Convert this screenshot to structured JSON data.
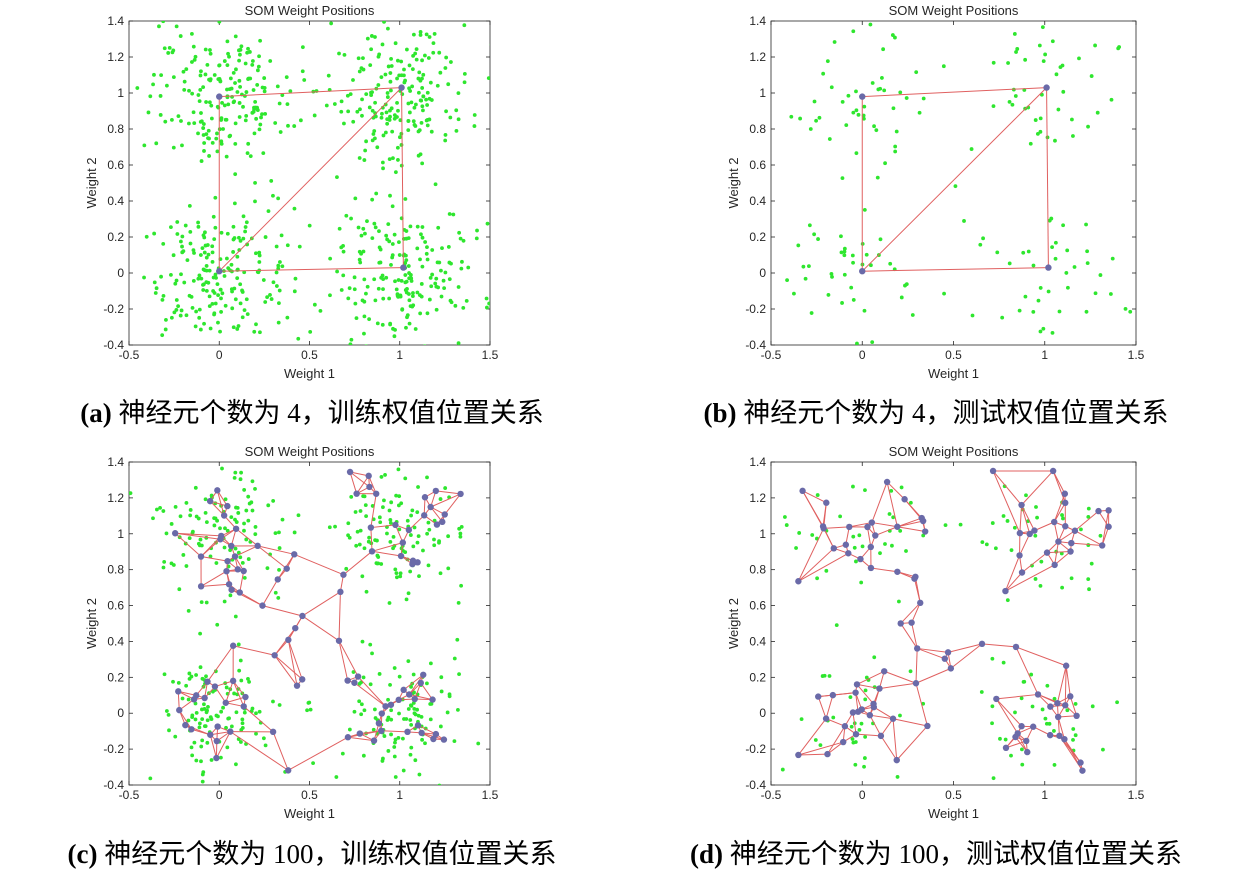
{
  "colors": {
    "points": "#2ee62e",
    "links": "#e06060",
    "neurons": "#6a6aa8",
    "axis": "#262626"
  },
  "chart_data": [
    {
      "id": "a",
      "type": "scatter",
      "title": "SOM Weight Positions",
      "xlabel": "Weight 1",
      "ylabel": "Weight 2",
      "xlim": [
        -0.5,
        1.5
      ],
      "ylim": [
        -0.4,
        1.4
      ],
      "xticks": [
        -0.5,
        0,
        0.5,
        1,
        1.5
      ],
      "yticks": [
        -0.4,
        -0.2,
        0,
        0.2,
        0.4,
        0.6,
        0.8,
        1,
        1.2,
        1.4
      ],
      "clusters": [
        [
          0,
          1
        ],
        [
          1,
          1
        ],
        [
          0,
          0
        ],
        [
          1,
          0
        ]
      ],
      "points_per_cluster": 200,
      "cluster_spread": 0.2,
      "neuron_count": 4,
      "neurons": [
        [
          0,
          0.98
        ],
        [
          1.01,
          1.03
        ],
        [
          0.0,
          0.01
        ],
        [
          1.02,
          0.03
        ]
      ],
      "links": [
        [
          0,
          1
        ],
        [
          0,
          2
        ],
        [
          1,
          3
        ],
        [
          2,
          3
        ],
        [
          1,
          2
        ]
      ],
      "caption_label": "(a)",
      "caption_text": " 神经元个数为 4，训练权值位置关系"
    },
    {
      "id": "b",
      "type": "scatter",
      "title": "SOM Weight Positions",
      "xlabel": "Weight 1",
      "ylabel": "Weight 2",
      "xlim": [
        -0.5,
        1.5
      ],
      "ylim": [
        -0.4,
        1.4
      ],
      "xticks": [
        -0.5,
        0,
        0.5,
        1,
        1.5
      ],
      "yticks": [
        -0.4,
        -0.2,
        0,
        0.2,
        0.4,
        0.6,
        0.8,
        1,
        1.2,
        1.4
      ],
      "clusters": [
        [
          0,
          1
        ],
        [
          1,
          1
        ],
        [
          0,
          0
        ],
        [
          1,
          0
        ]
      ],
      "points_per_cluster": 45,
      "cluster_spread": 0.2,
      "neuron_count": 4,
      "neurons": [
        [
          0,
          0.98
        ],
        [
          1.01,
          1.03
        ],
        [
          0.0,
          0.01
        ],
        [
          1.02,
          0.03
        ]
      ],
      "links": [
        [
          0,
          1
        ],
        [
          0,
          2
        ],
        [
          1,
          3
        ],
        [
          2,
          3
        ],
        [
          1,
          2
        ]
      ],
      "caption_label": "(b)",
      "caption_text": " 神经元个数为 4，测试权值位置关系"
    },
    {
      "id": "c",
      "type": "scatter",
      "title": "SOM Weight Positions",
      "xlabel": "Weight 1",
      "ylabel": "Weight 2",
      "xlim": [
        -0.5,
        1.5
      ],
      "ylim": [
        -0.4,
        1.4
      ],
      "xticks": [
        -0.5,
        0,
        0.5,
        1,
        1.5
      ],
      "yticks": [
        -0.4,
        -0.2,
        0,
        0.2,
        0.4,
        0.6,
        0.8,
        1,
        1.2,
        1.4
      ],
      "clusters": [
        [
          0,
          1
        ],
        [
          1,
          1
        ],
        [
          0,
          0
        ],
        [
          1,
          0
        ]
      ],
      "points_per_cluster": 110,
      "cluster_spread": 0.18,
      "neuron_count": 100,
      "neurons": [],
      "links": [],
      "caption_label": "(c)",
      "caption_text": " 神经元个数为 100，训练权值位置关系"
    },
    {
      "id": "d",
      "type": "scatter",
      "title": "SOM Weight Positions",
      "xlabel": "Weight 1",
      "ylabel": "Weight 2",
      "xlim": [
        -0.5,
        1.5
      ],
      "ylim": [
        -0.4,
        1.4
      ],
      "xticks": [
        -0.5,
        0,
        0.5,
        1,
        1.5
      ],
      "yticks": [
        -0.4,
        -0.2,
        0,
        0.2,
        0.4,
        0.6,
        0.8,
        1,
        1.2,
        1.4
      ],
      "clusters": [
        [
          0,
          1
        ],
        [
          1,
          1
        ],
        [
          0,
          0
        ],
        [
          1,
          0
        ]
      ],
      "points_per_cluster": 35,
      "cluster_spread": 0.2,
      "neuron_count": 100,
      "neurons": [],
      "links": [],
      "caption_label": "(d)",
      "caption_text": " 神经元个数为 100，测试权值位置关系"
    }
  ]
}
